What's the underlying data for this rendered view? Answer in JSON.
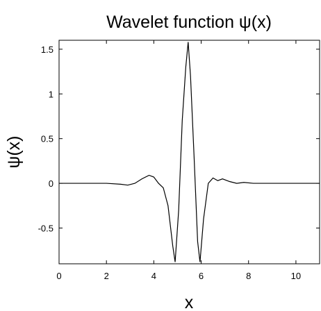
{
  "chart_data": {
    "type": "line",
    "title": "Wavelet function ψ(x)",
    "xlabel": "x",
    "ylabel": "ψ(x)",
    "xlim": [
      0,
      11
    ],
    "ylim": [
      -0.9,
      1.6
    ],
    "xticks": [
      0,
      2,
      4,
      6,
      8,
      10
    ],
    "xtick_labels": [
      "0",
      "2",
      "4",
      "6",
      "8",
      "10"
    ],
    "yticks": [
      -0.5,
      0,
      0.5,
      1,
      1.5
    ],
    "ytick_labels": [
      "-0.5",
      "0",
      "0.5",
      "1",
      "1.5"
    ],
    "grid": false,
    "series": [
      {
        "line_color": "#000000",
        "x": [
          0,
          1,
          2,
          2.6,
          2.9,
          3.2,
          3.5,
          3.8,
          4.0,
          4.2,
          4.4,
          4.6,
          4.8,
          4.9,
          5.05,
          5.2,
          5.35,
          5.45,
          5.55,
          5.7,
          5.85,
          5.95,
          6.1,
          6.3,
          6.5,
          6.7,
          6.9,
          7.2,
          7.5,
          7.8,
          8.2,
          9,
          10,
          11
        ],
        "y": [
          0,
          0,
          0,
          -0.01,
          -0.02,
          0.0,
          0.05,
          0.09,
          0.07,
          0.0,
          -0.05,
          -0.25,
          -0.7,
          -0.88,
          -0.3,
          0.7,
          1.3,
          1.58,
          1.2,
          0.3,
          -0.65,
          -0.88,
          -0.4,
          0.0,
          0.06,
          0.03,
          0.05,
          0.02,
          0.0,
          0.01,
          0.0,
          0,
          0,
          0
        ]
      }
    ]
  }
}
